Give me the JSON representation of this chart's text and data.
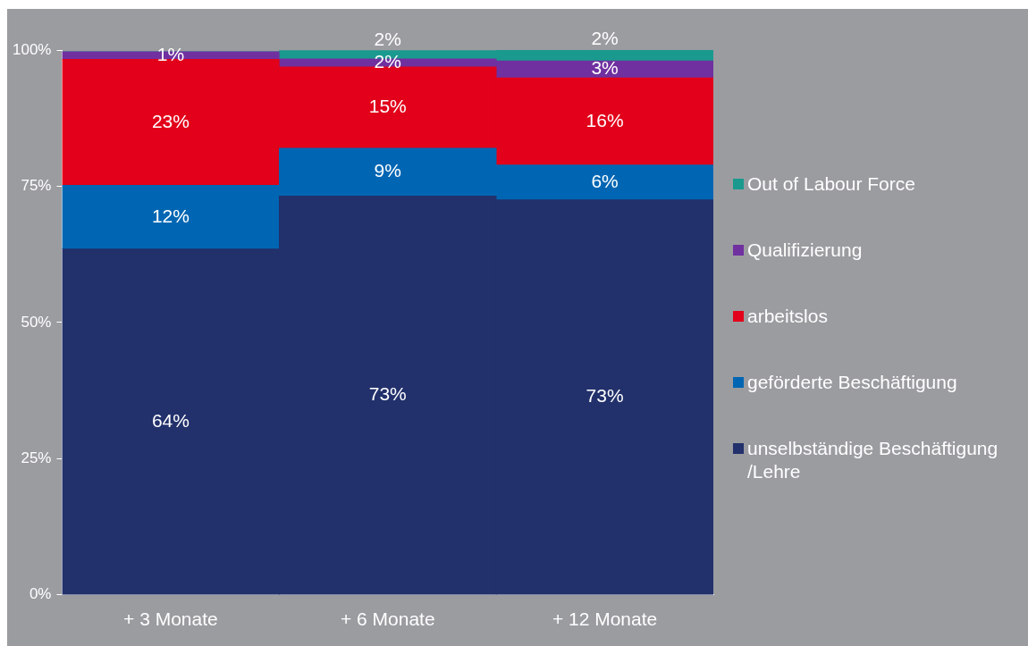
{
  "chart_data": {
    "type": "bar",
    "stacked": true,
    "categories": [
      "+ 3 Monate",
      "+ 6 Monate",
      "+ 12 Monate"
    ],
    "ylim": [
      0,
      100
    ],
    "yticks": [
      {
        "value": 0,
        "label": "0%"
      },
      {
        "value": 25,
        "label": "25%"
      },
      {
        "value": 50,
        "label": "50%"
      },
      {
        "value": 75,
        "label": "75%"
      },
      {
        "value": 100,
        "label": "100%"
      }
    ],
    "grid": false,
    "legend": "right",
    "series": [
      {
        "name": "unselbständige Beschäftigung /Lehre",
        "color": "#22306b",
        "values": [
          63.5,
          73.2,
          72.5
        ],
        "value_labels": [
          "64%",
          "73%",
          "73%"
        ]
      },
      {
        "name": "geförderte Beschäftigung",
        "color": "#0066b3",
        "values": [
          11.7,
          8.8,
          6.4
        ],
        "value_labels": [
          "12%",
          "9%",
          "6%"
        ]
      },
      {
        "name": "arbeitslos",
        "color": "#e2001a",
        "values": [
          23.1,
          14.9,
          16.0
        ],
        "value_labels": [
          "23%",
          "15%",
          "16%"
        ]
      },
      {
        "name": "Qualifizierung",
        "color": "#7030a0",
        "values": [
          1.4,
          1.5,
          3.1
        ],
        "value_labels": [
          "1%",
          "2%",
          "3%"
        ]
      },
      {
        "name": "Out of Labour Force",
        "color": "#1a9a8f",
        "values": [
          0,
          1.5,
          2.0
        ],
        "value_labels": [
          null,
          "2%",
          "2%"
        ]
      }
    ]
  }
}
